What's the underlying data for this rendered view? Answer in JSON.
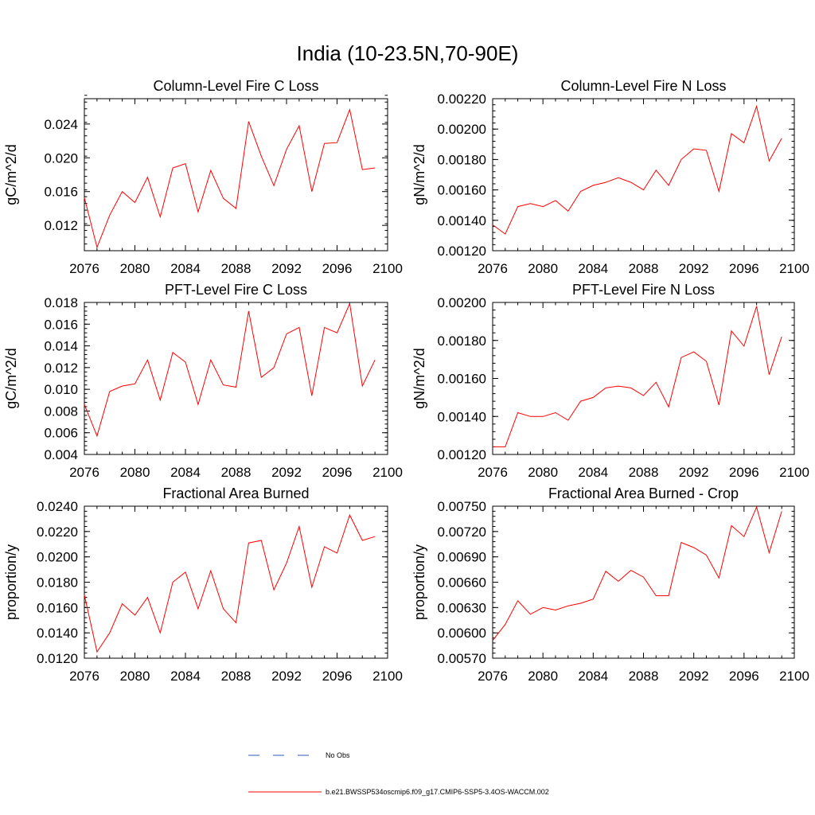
{
  "title": "India (10-23.5N,70-90E)",
  "colors": {
    "series": "#ff0000",
    "obs": "#3355bb",
    "axis": "#000000"
  },
  "legend": {
    "items": [
      {
        "label": "No Obs",
        "style": "dashed",
        "color": "#3355bb"
      },
      {
        "label": "b.e21.BWSSP534oscmip6.f09_g17.CMIP6-SSP5-3.4OS-WACCM.002",
        "style": "solid",
        "color": "#ff0000"
      }
    ]
  },
  "chart_data": [
    {
      "type": "line",
      "title": "Column-Level Fire C Loss",
      "ylabel": "gC/m^2/d",
      "xlabel": "",
      "xlim": [
        2076,
        2100
      ],
      "ylim": [
        0.009,
        0.027
      ],
      "xticks": [
        2076,
        2080,
        2084,
        2088,
        2092,
        2096,
        2100
      ],
      "yticks": [
        0.012,
        0.016,
        0.02,
        0.024
      ],
      "ytick_labels": [
        "0.012",
        "0.016",
        "0.020",
        "0.024"
      ],
      "ymajor_step": 0.004,
      "series": [
        {
          "name": "b.e21.BWSSP534oscmip6.f09_g17.CMIP6-SSP5-3.4OS-WACCM.002",
          "x": [
            2076,
            2077,
            2078,
            2079,
            2080,
            2081,
            2082,
            2083,
            2084,
            2085,
            2086,
            2087,
            2088,
            2089,
            2090,
            2091,
            2092,
            2093,
            2094,
            2095,
            2096,
            2097,
            2098,
            2099
          ],
          "values": [
            0.0153,
            0.0094,
            0.0132,
            0.016,
            0.0147,
            0.0177,
            0.013,
            0.0188,
            0.0193,
            0.0136,
            0.0185,
            0.0152,
            0.014,
            0.0243,
            0.0202,
            0.0167,
            0.021,
            0.0238,
            0.016,
            0.0217,
            0.0218,
            0.0257,
            0.0186,
            0.0188
          ]
        }
      ]
    },
    {
      "type": "line",
      "title": "Column-Level Fire N Loss",
      "ylabel": "gN/m^2/d",
      "xlabel": "",
      "xlim": [
        2076,
        2100
      ],
      "ylim": [
        0.0012,
        0.0022
      ],
      "xticks": [
        2076,
        2080,
        2084,
        2088,
        2092,
        2096,
        2100
      ],
      "yticks": [
        0.0012,
        0.0014,
        0.0016,
        0.0018,
        0.002,
        0.0022
      ],
      "ytick_labels": [
        "0.00120",
        "0.00140",
        "0.00160",
        "0.00180",
        "0.00200",
        "0.00220"
      ],
      "ymajor_step": 0.0002,
      "series": [
        {
          "name": "b.e21.BWSSP534oscmip6.f09_g17.CMIP6-SSP5-3.4OS-WACCM.002",
          "x": [
            2076,
            2077,
            2078,
            2079,
            2080,
            2081,
            2082,
            2083,
            2084,
            2085,
            2086,
            2087,
            2088,
            2089,
            2090,
            2091,
            2092,
            2093,
            2094,
            2095,
            2096,
            2097,
            2098,
            2099
          ],
          "values": [
            0.00137,
            0.00131,
            0.00149,
            0.00151,
            0.00149,
            0.00153,
            0.00146,
            0.00159,
            0.00163,
            0.00165,
            0.00168,
            0.00165,
            0.0016,
            0.00173,
            0.00163,
            0.0018,
            0.00187,
            0.00186,
            0.00159,
            0.00197,
            0.00191,
            0.00215,
            0.00179,
            0.00194
          ]
        }
      ]
    },
    {
      "type": "line",
      "title": "PFT-Level Fire C Loss",
      "ylabel": "gC/m^2/d",
      "xlabel": "",
      "xlim": [
        2076,
        2100
      ],
      "ylim": [
        0.004,
        0.018
      ],
      "xticks": [
        2076,
        2080,
        2084,
        2088,
        2092,
        2096,
        2100
      ],
      "yticks": [
        0.004,
        0.006,
        0.008,
        0.01,
        0.012,
        0.014,
        0.016,
        0.018
      ],
      "ytick_labels": [
        "0.004",
        "0.006",
        "0.008",
        "0.010",
        "0.012",
        "0.014",
        "0.016",
        "0.018"
      ],
      "ymajor_step": 0.002,
      "series": [
        {
          "name": "b.e21.BWSSP534oscmip6.f09_g17.CMIP6-SSP5-3.4OS-WACCM.002",
          "x": [
            2076,
            2077,
            2078,
            2079,
            2080,
            2081,
            2082,
            2083,
            2084,
            2085,
            2086,
            2087,
            2088,
            2089,
            2090,
            2091,
            2092,
            2093,
            2094,
            2095,
            2096,
            2097,
            2098,
            2099
          ],
          "values": [
            0.0086,
            0.0057,
            0.0098,
            0.0103,
            0.0105,
            0.0127,
            0.009,
            0.0134,
            0.0125,
            0.0086,
            0.0127,
            0.0104,
            0.0102,
            0.0172,
            0.0111,
            0.012,
            0.0151,
            0.0157,
            0.0094,
            0.0157,
            0.0152,
            0.0179,
            0.0103,
            0.0127
          ]
        }
      ]
    },
    {
      "type": "line",
      "title": "PFT-Level Fire N Loss",
      "ylabel": "gN/m^2/d",
      "xlabel": "",
      "xlim": [
        2076,
        2100
      ],
      "ylim": [
        0.0012,
        0.002
      ],
      "xticks": [
        2076,
        2080,
        2084,
        2088,
        2092,
        2096,
        2100
      ],
      "yticks": [
        0.0012,
        0.0014,
        0.0016,
        0.0018,
        0.002
      ],
      "ytick_labels": [
        "0.00120",
        "0.00140",
        "0.00160",
        "0.00180",
        "0.00200"
      ],
      "ymajor_step": 0.0002,
      "series": [
        {
          "name": "b.e21.BWSSP534oscmip6.f09_g17.CMIP6-SSP5-3.4OS-WACCM.002",
          "x": [
            2076,
            2077,
            2078,
            2079,
            2080,
            2081,
            2082,
            2083,
            2084,
            2085,
            2086,
            2087,
            2088,
            2089,
            2090,
            2091,
            2092,
            2093,
            2094,
            2095,
            2096,
            2097,
            2098,
            2099
          ],
          "values": [
            0.00124,
            0.00124,
            0.00142,
            0.0014,
            0.0014,
            0.00142,
            0.00138,
            0.00148,
            0.0015,
            0.00155,
            0.00156,
            0.00155,
            0.00151,
            0.00158,
            0.00145,
            0.00171,
            0.00174,
            0.00169,
            0.00146,
            0.00185,
            0.00177,
            0.00198,
            0.00162,
            0.00182
          ]
        }
      ]
    },
    {
      "type": "line",
      "title": "Fractional Area Burned",
      "ylabel": "proportion/y",
      "xlabel": "",
      "xlim": [
        2076,
        2100
      ],
      "ylim": [
        0.012,
        0.024
      ],
      "xticks": [
        2076,
        2080,
        2084,
        2088,
        2092,
        2096,
        2100
      ],
      "yticks": [
        0.012,
        0.014,
        0.016,
        0.018,
        0.02,
        0.022,
        0.024
      ],
      "ytick_labels": [
        "0.0120",
        "0.0140",
        "0.0160",
        "0.0180",
        "0.0200",
        "0.0220",
        "0.0240"
      ],
      "ymajor_step": 0.002,
      "series": [
        {
          "name": "b.e21.BWSSP534oscmip6.f09_g17.CMIP6-SSP5-3.4OS-WACCM.002",
          "x": [
            2076,
            2077,
            2078,
            2079,
            2080,
            2081,
            2082,
            2083,
            2084,
            2085,
            2086,
            2087,
            2088,
            2089,
            2090,
            2091,
            2092,
            2093,
            2094,
            2095,
            2096,
            2097,
            2098,
            2099
          ],
          "values": [
            0.017,
            0.0125,
            0.014,
            0.0163,
            0.0154,
            0.0168,
            0.014,
            0.018,
            0.0188,
            0.0159,
            0.0189,
            0.0159,
            0.0148,
            0.0211,
            0.0213,
            0.0174,
            0.0195,
            0.0224,
            0.0176,
            0.0208,
            0.0203,
            0.0233,
            0.0213,
            0.0216
          ]
        }
      ]
    },
    {
      "type": "line",
      "title": "Fractional Area Burned - Crop",
      "ylabel": "proportion/y",
      "xlabel": "",
      "xlim": [
        2076,
        2100
      ],
      "ylim": [
        0.0057,
        0.0075
      ],
      "xticks": [
        2076,
        2080,
        2084,
        2088,
        2092,
        2096,
        2100
      ],
      "yticks": [
        0.0057,
        0.006,
        0.0063,
        0.0066,
        0.0069,
        0.0072,
        0.0075
      ],
      "ytick_labels": [
        "0.00570",
        "0.00600",
        "0.00630",
        "0.00660",
        "0.00690",
        "0.00720",
        "0.00750"
      ],
      "ymajor_step": 0.0003,
      "series": [
        {
          "name": "b.e21.BWSSP534oscmip6.f09_g17.CMIP6-SSP5-3.4OS-WACCM.002",
          "x": [
            2076,
            2077,
            2078,
            2079,
            2080,
            2081,
            2082,
            2083,
            2084,
            2085,
            2086,
            2087,
            2088,
            2089,
            2090,
            2091,
            2092,
            2093,
            2094,
            2095,
            2096,
            2097,
            2098,
            2099
          ],
          "values": [
            0.00591,
            0.0061,
            0.00638,
            0.00622,
            0.0063,
            0.00627,
            0.00632,
            0.00635,
            0.0064,
            0.00673,
            0.00661,
            0.00674,
            0.00666,
            0.00644,
            0.00644,
            0.00707,
            0.00701,
            0.00692,
            0.00665,
            0.00727,
            0.00714,
            0.00749,
            0.00695,
            0.00744
          ]
        }
      ]
    }
  ]
}
